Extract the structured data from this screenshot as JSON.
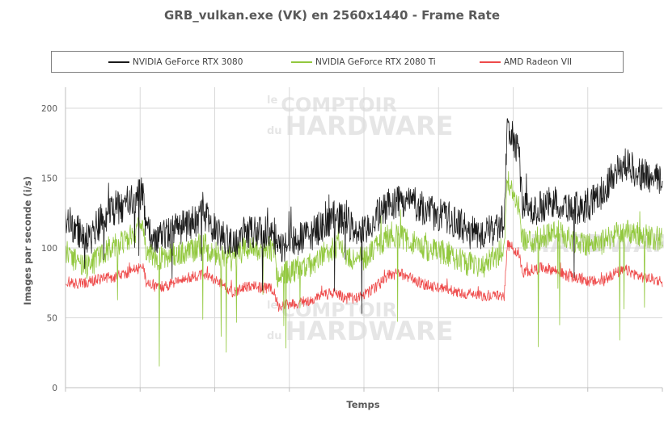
{
  "chart_data": {
    "type": "line",
    "title": "GRB_vulkan.exe (VK) en 2560x1440 - Frame Rate",
    "xlabel": "Temps",
    "ylabel": "Images par seconde (i/s)",
    "ylim": [
      0,
      215
    ],
    "yticks": [
      0,
      50,
      100,
      150,
      200
    ],
    "grid": true,
    "legend_position": "top",
    "watermark": [
      "le",
      "COMPTOIR",
      "du",
      "HARDWARE"
    ],
    "x_segments": 8,
    "series": [
      {
        "name": "NVIDIA GeForce RTX 3080",
        "color": "#1a1a1a",
        "noise": 12,
        "spike_down": 55,
        "envelope": [
          [
            0,
            122
          ],
          [
            0.02,
            112
          ],
          [
            0.04,
            105
          ],
          [
            0.06,
            120
          ],
          [
            0.08,
            128
          ],
          [
            0.1,
            130
          ],
          [
            0.12,
            138
          ],
          [
            0.13,
            140
          ],
          [
            0.135,
            112
          ],
          [
            0.15,
            108
          ],
          [
            0.17,
            110
          ],
          [
            0.19,
            114
          ],
          [
            0.2,
            116
          ],
          [
            0.22,
            120
          ],
          [
            0.23,
            128
          ],
          [
            0.24,
            118
          ],
          [
            0.26,
            108
          ],
          [
            0.28,
            103
          ],
          [
            0.3,
            112
          ],
          [
            0.32,
            111
          ],
          [
            0.35,
            110
          ],
          [
            0.355,
            99
          ],
          [
            0.38,
            104
          ],
          [
            0.41,
            109
          ],
          [
            0.43,
            116
          ],
          [
            0.45,
            122
          ],
          [
            0.47,
            120
          ],
          [
            0.48,
            114
          ],
          [
            0.5,
            110
          ],
          [
            0.52,
            122
          ],
          [
            0.54,
            130
          ],
          [
            0.56,
            134
          ],
          [
            0.58,
            133
          ],
          [
            0.6,
            128
          ],
          [
            0.62,
            124
          ],
          [
            0.64,
            122
          ],
          [
            0.66,
            117
          ],
          [
            0.68,
            112
          ],
          [
            0.7,
            109
          ],
          [
            0.72,
            114
          ],
          [
            0.735,
            120
          ],
          [
            0.74,
            185
          ],
          [
            0.75,
            178
          ],
          [
            0.76,
            168
          ],
          [
            0.765,
            130
          ],
          [
            0.78,
            126
          ],
          [
            0.8,
            130
          ],
          [
            0.82,
            133
          ],
          [
            0.84,
            130
          ],
          [
            0.86,
            128
          ],
          [
            0.88,
            132
          ],
          [
            0.9,
            140
          ],
          [
            0.92,
            155
          ],
          [
            0.94,
            160
          ],
          [
            0.96,
            154
          ],
          [
            0.98,
            150
          ],
          [
            1,
            148
          ]
        ]
      },
      {
        "name": "NVIDIA GeForce RTX 2080 Ti",
        "color": "#92c83e",
        "noise": 9,
        "spike_down": 75,
        "envelope": [
          [
            0,
            98
          ],
          [
            0.02,
            90
          ],
          [
            0.04,
            86
          ],
          [
            0.06,
            96
          ],
          [
            0.08,
            102
          ],
          [
            0.1,
            105
          ],
          [
            0.12,
            112
          ],
          [
            0.13,
            118
          ],
          [
            0.135,
            96
          ],
          [
            0.15,
            92
          ],
          [
            0.17,
            94
          ],
          [
            0.19,
            96
          ],
          [
            0.2,
            96
          ],
          [
            0.22,
            100
          ],
          [
            0.23,
            104
          ],
          [
            0.24,
            98
          ],
          [
            0.26,
            94
          ],
          [
            0.28,
            92
          ],
          [
            0.3,
            100
          ],
          [
            0.32,
            100
          ],
          [
            0.35,
            99
          ],
          [
            0.355,
            80
          ],
          [
            0.38,
            84
          ],
          [
            0.41,
            88
          ],
          [
            0.43,
            95
          ],
          [
            0.45,
            101
          ],
          [
            0.47,
            96
          ],
          [
            0.48,
            93
          ],
          [
            0.5,
            92
          ],
          [
            0.52,
            100
          ],
          [
            0.54,
            108
          ],
          [
            0.56,
            108
          ],
          [
            0.58,
            104
          ],
          [
            0.6,
            100
          ],
          [
            0.62,
            98
          ],
          [
            0.64,
            96
          ],
          [
            0.66,
            91
          ],
          [
            0.68,
            88
          ],
          [
            0.7,
            86
          ],
          [
            0.72,
            94
          ],
          [
            0.735,
            100
          ],
          [
            0.74,
            148
          ],
          [
            0.75,
            140
          ],
          [
            0.76,
            130
          ],
          [
            0.765,
            106
          ],
          [
            0.78,
            104
          ],
          [
            0.8,
            108
          ],
          [
            0.82,
            112
          ],
          [
            0.84,
            108
          ],
          [
            0.86,
            104
          ],
          [
            0.88,
            103
          ],
          [
            0.9,
            104
          ],
          [
            0.92,
            110
          ],
          [
            0.94,
            112
          ],
          [
            0.96,
            110
          ],
          [
            0.98,
            108
          ],
          [
            1,
            106
          ]
        ]
      },
      {
        "name": "AMD Radeon VII",
        "color": "#ee4a4a",
        "noise": 4,
        "spike_down": 0,
        "envelope": [
          [
            0,
            76
          ],
          [
            0.02,
            74
          ],
          [
            0.04,
            76
          ],
          [
            0.06,
            78
          ],
          [
            0.08,
            79
          ],
          [
            0.1,
            82
          ],
          [
            0.12,
            85
          ],
          [
            0.13,
            86
          ],
          [
            0.135,
            76
          ],
          [
            0.15,
            72
          ],
          [
            0.17,
            73
          ],
          [
            0.19,
            76
          ],
          [
            0.2,
            78
          ],
          [
            0.22,
            80
          ],
          [
            0.23,
            82
          ],
          [
            0.24,
            80
          ],
          [
            0.26,
            74
          ],
          [
            0.28,
            68
          ],
          [
            0.3,
            72
          ],
          [
            0.32,
            72
          ],
          [
            0.35,
            70
          ],
          [
            0.355,
            58
          ],
          [
            0.38,
            60
          ],
          [
            0.41,
            62
          ],
          [
            0.43,
            66
          ],
          [
            0.45,
            68
          ],
          [
            0.47,
            64
          ],
          [
            0.48,
            64
          ],
          [
            0.5,
            66
          ],
          [
            0.52,
            72
          ],
          [
            0.54,
            80
          ],
          [
            0.56,
            82
          ],
          [
            0.58,
            78
          ],
          [
            0.6,
            74
          ],
          [
            0.62,
            72
          ],
          [
            0.64,
            70
          ],
          [
            0.66,
            68
          ],
          [
            0.68,
            67
          ],
          [
            0.7,
            66
          ],
          [
            0.72,
            66
          ],
          [
            0.735,
            66
          ],
          [
            0.74,
            102
          ],
          [
            0.75,
            100
          ],
          [
            0.76,
            96
          ],
          [
            0.765,
            82
          ],
          [
            0.78,
            84
          ],
          [
            0.8,
            86
          ],
          [
            0.82,
            84
          ],
          [
            0.84,
            80
          ],
          [
            0.86,
            78
          ],
          [
            0.88,
            76
          ],
          [
            0.9,
            76
          ],
          [
            0.92,
            82
          ],
          [
            0.94,
            84
          ],
          [
            0.96,
            80
          ],
          [
            0.98,
            78
          ],
          [
            1,
            76
          ]
        ]
      }
    ]
  }
}
